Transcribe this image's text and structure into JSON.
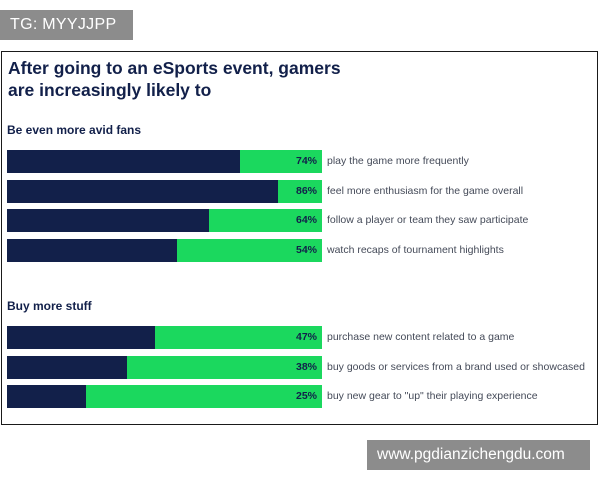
{
  "watermark_tag": "TG: MYYJJPP",
  "url_tag": "www.pgdianzichengdu.com",
  "chart_data": {
    "type": "bar",
    "orientation": "horizontal",
    "stacked_to_100": true,
    "title": "After going to an eSports event, gamers are increasingly likely to",
    "xlim": [
      0,
      100
    ],
    "colors": {
      "value": "#12204a",
      "remainder": "#1bd85e"
    },
    "groups": [
      {
        "heading": "Be even more avid fans",
        "bars": [
          {
            "label": "play the game more frequently",
            "value": 74,
            "value_label": "74%"
          },
          {
            "label": "feel more enthusiasm for the game overall",
            "value": 86,
            "value_label": "86%"
          },
          {
            "label": "follow a player or team they saw participate",
            "value": 64,
            "value_label": "64%"
          },
          {
            "label": "watch recaps of tournament highlights",
            "value": 54,
            "value_label": "54%"
          }
        ]
      },
      {
        "heading": "Buy more stuff",
        "bars": [
          {
            "label": "purchase new content related to a game",
            "value": 47,
            "value_label": "47%"
          },
          {
            "label": "buy goods or services from a brand used or showcased",
            "value": 38,
            "value_label": "38%"
          },
          {
            "label": "buy new gear to \"up\" their playing experience",
            "value": 25,
            "value_label": "25%"
          }
        ]
      }
    ]
  }
}
